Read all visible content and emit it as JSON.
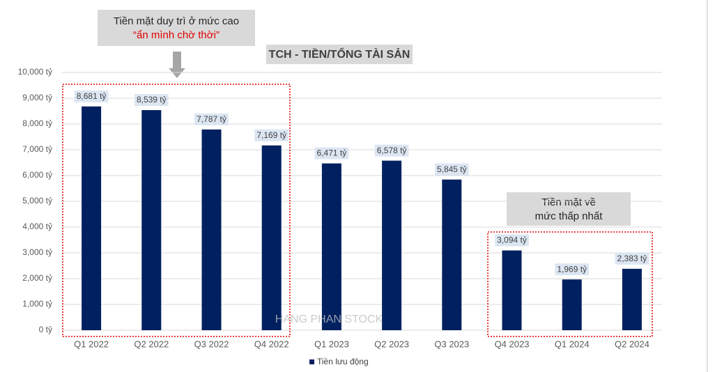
{
  "chart_data": {
    "type": "bar",
    "title": "TCH - TIỀN/TỔNG TÀI SẢN",
    "annotations": {
      "high_cash": [
        "Tiền mặt duy trì ở mức cao",
        "“ẩn mình chờ thời”"
      ],
      "low_cash": [
        "Tiền mặt về",
        "mức thấp nhất"
      ],
      "watermark": "HANG PHAN STOCK"
    },
    "categories": [
      "Q1 2022",
      "Q2 2022",
      "Q3 2022",
      "Q4 2022",
      "Q1 2023",
      "Q2 2023",
      "Q3 2023",
      "Q4 2023",
      "Q1 2024",
      "Q2 2024"
    ],
    "series": [
      {
        "name": "Tiền lưu động",
        "color": "#002060",
        "values": [
          8681,
          8539,
          7787,
          7169,
          6471,
          6578,
          5845,
          3094,
          1969,
          2383
        ],
        "value_labels": [
          "8,681 tỷ",
          "8,539 tỷ",
          "7,787 tỷ",
          "7,169 tỷ",
          "6,471 tỷ",
          "6,578 tỷ",
          "5,845 tỷ",
          "3,094 tỷ",
          "1,969 tỷ",
          "2,383 tỷ"
        ]
      }
    ],
    "ylim": [
      0,
      10000
    ],
    "yticks": [
      {
        "value": 0,
        "label": "0 tỷ"
      },
      {
        "value": 1000,
        "label": "1,000 tỷ"
      },
      {
        "value": 2000,
        "label": "2,000 tỷ"
      },
      {
        "value": 3000,
        "label": "3,000 tỷ"
      },
      {
        "value": 4000,
        "label": "4,000 tỷ"
      },
      {
        "value": 5000,
        "label": "5,000 tỷ"
      },
      {
        "value": 6000,
        "label": "6,000 tỷ"
      },
      {
        "value": 7000,
        "label": "7,000 tỷ"
      },
      {
        "value": 8000,
        "label": "8,000 tỷ"
      },
      {
        "value": 9000,
        "label": "9,000 tỷ"
      },
      {
        "value": 10000,
        "label": "10,000 tỷ"
      }
    ],
    "grid": true,
    "legend": "bottom"
  }
}
